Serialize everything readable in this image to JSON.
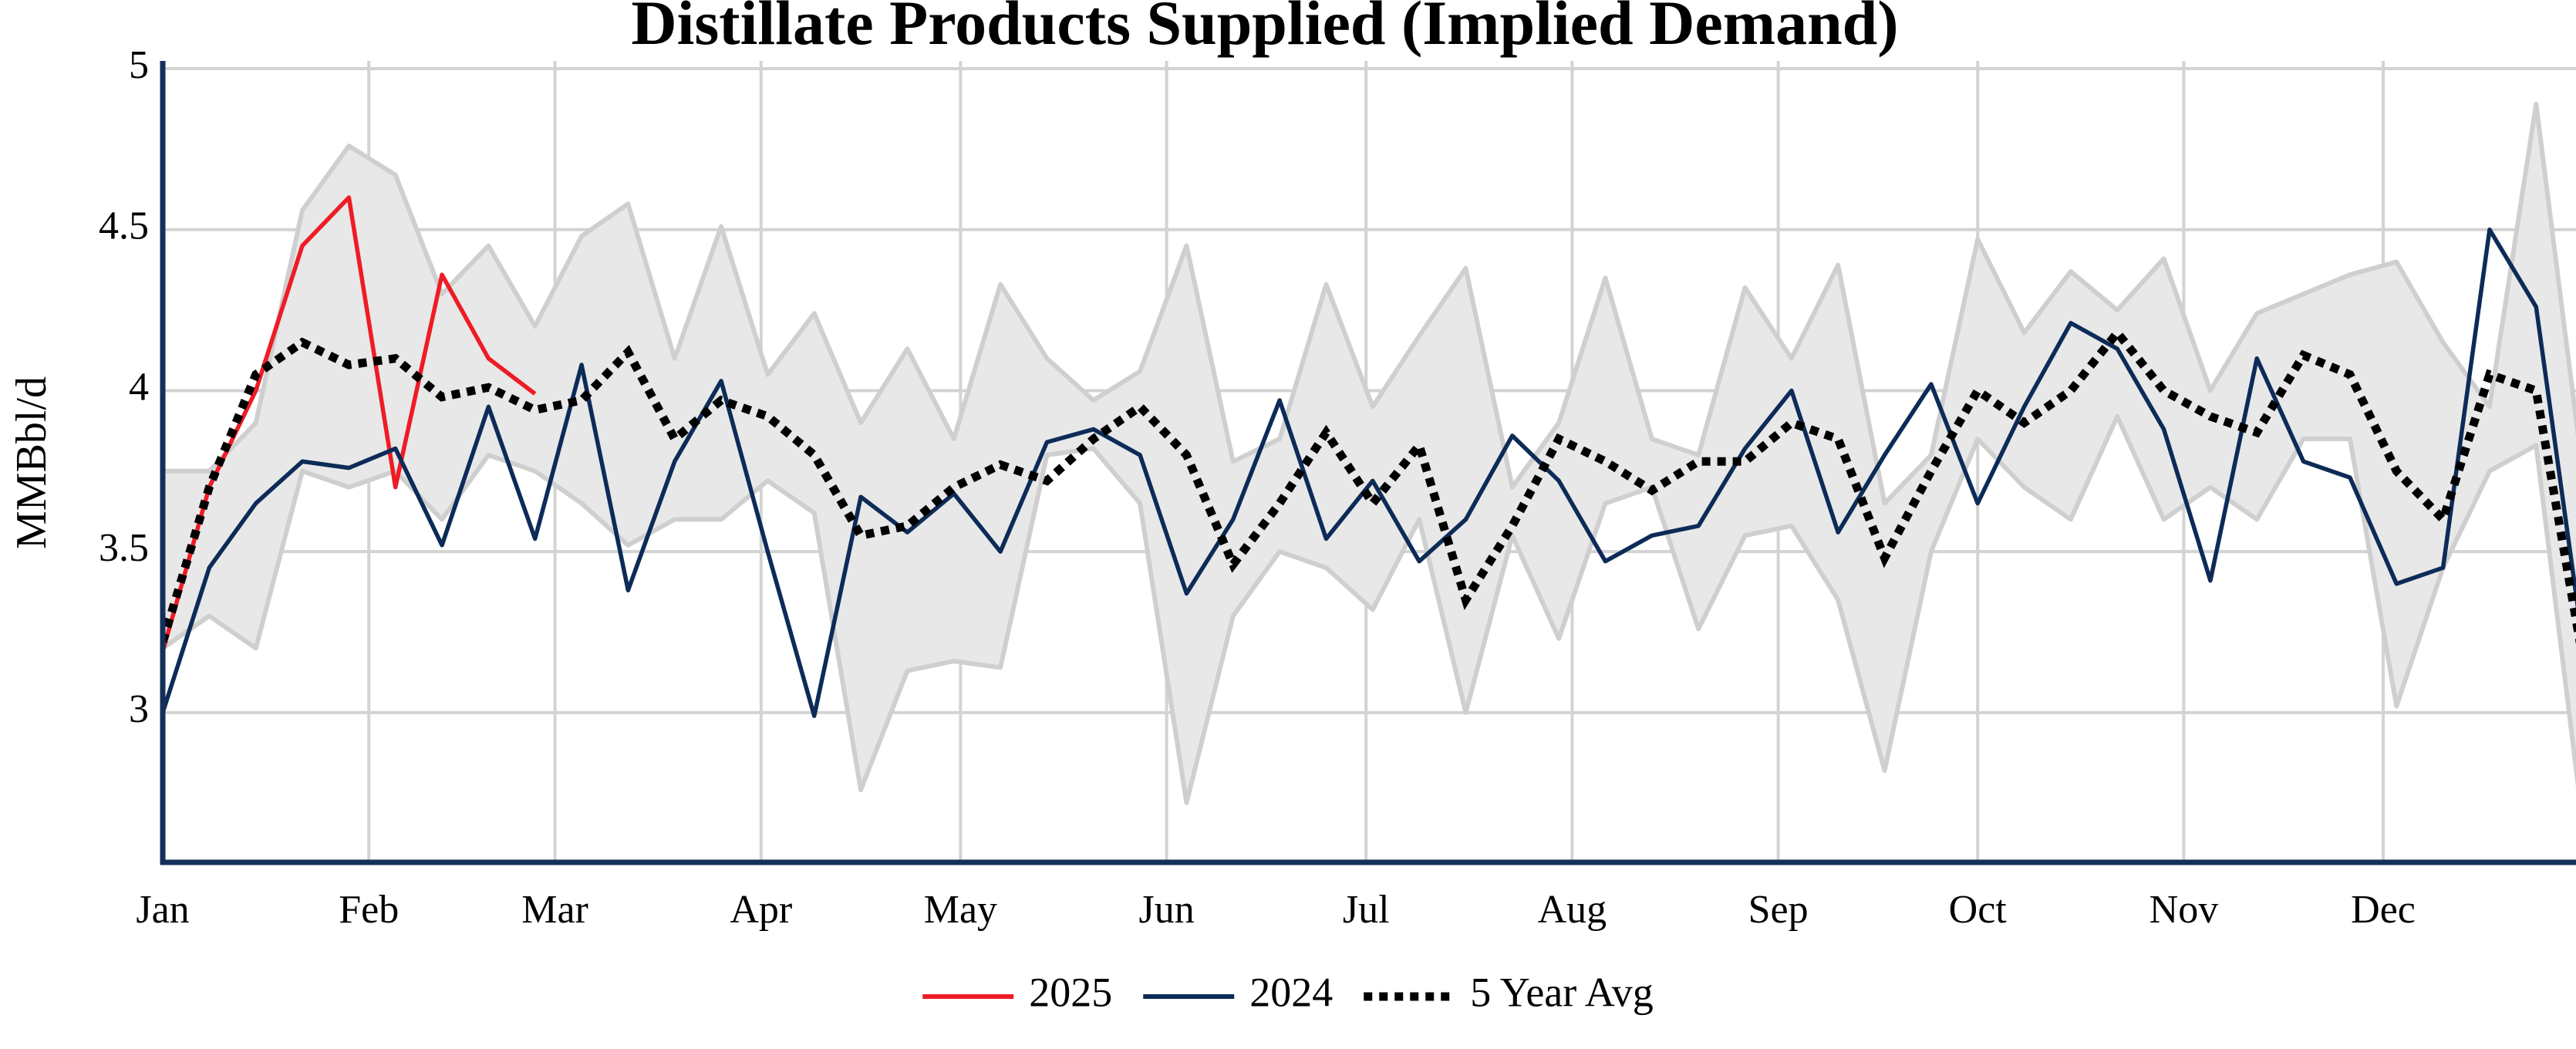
{
  "chart_data": {
    "type": "line",
    "title": "Distillate Products Supplied (Implied Demand)",
    "y_label": "MMBbl/d",
    "x": [
      0,
      7,
      14,
      21,
      28,
      35,
      42,
      49,
      56,
      63,
      70,
      77,
      84,
      91,
      98,
      105,
      112,
      119,
      126,
      133,
      140,
      147,
      154,
      161,
      168,
      175,
      182,
      189,
      196,
      203,
      210,
      217,
      224,
      231,
      238,
      245,
      252,
      259,
      266,
      273,
      280,
      287,
      294,
      301,
      308,
      315,
      322,
      329,
      336,
      343,
      350,
      357,
      364
    ],
    "xlim": [
      0,
      363
    ],
    "xticks": [
      {
        "value": 0,
        "label": "Jan"
      },
      {
        "value": 31,
        "label": "Feb"
      },
      {
        "value": 59,
        "label": "Mar"
      },
      {
        "value": 90,
        "label": "Apr"
      },
      {
        "value": 120,
        "label": "May"
      },
      {
        "value": 151,
        "label": "Jun"
      },
      {
        "value": 181,
        "label": "Jul"
      },
      {
        "value": 212,
        "label": "Aug"
      },
      {
        "value": 243,
        "label": "Sep"
      },
      {
        "value": 273,
        "label": "Oct"
      },
      {
        "value": 304,
        "label": "Nov"
      },
      {
        "value": 334,
        "label": "Dec"
      }
    ],
    "ylim": [
      2.535,
      5
    ],
    "yticks": [
      3,
      3.5,
      4,
      4.5,
      5
    ],
    "grid": true,
    "legend": "bottom",
    "band": {
      "color": "#e8e8e8",
      "edge_color": "#cfcfcf",
      "upper": [
        3.75,
        3.75,
        3.9,
        4.56,
        4.76,
        4.67,
        4.3,
        4.45,
        4.2,
        4.48,
        4.58,
        4.1,
        4.51,
        4.05,
        4.24,
        3.9,
        4.13,
        3.85,
        4.33,
        4.1,
        3.97,
        4.06,
        4.45,
        3.78,
        3.85,
        4.33,
        3.95,
        4.17,
        4.38,
        3.7,
        3.9,
        4.35,
        3.85,
        3.8,
        4.32,
        4.1,
        4.39,
        3.65,
        3.8,
        4.47,
        4.18,
        4.37,
        4.25,
        4.41,
        4.0,
        4.24,
        4.3,
        4.36,
        4.4,
        4.15,
        3.95,
        4.89,
        3.75
      ],
      "lower": [
        3.2,
        3.3,
        3.2,
        3.75,
        3.7,
        3.75,
        3.6,
        3.8,
        3.75,
        3.65,
        3.52,
        3.6,
        3.6,
        3.72,
        3.62,
        2.76,
        3.13,
        3.16,
        3.14,
        3.8,
        3.82,
        3.65,
        2.72,
        3.3,
        3.5,
        3.45,
        3.32,
        3.6,
        3.0,
        3.55,
        3.23,
        3.65,
        3.7,
        3.26,
        3.55,
        3.58,
        3.35,
        2.82,
        3.5,
        3.85,
        3.7,
        3.6,
        3.92,
        3.6,
        3.7,
        3.6,
        3.85,
        3.85,
        3.02,
        3.45,
        3.75,
        3.83,
        2.66
      ]
    },
    "series": [
      {
        "name": "2025",
        "color": "#ee1c25",
        "style": "solid",
        "values": [
          3.19,
          3.7,
          4.0,
          4.45,
          4.6,
          3.7,
          4.36,
          4.1,
          3.99,
          null,
          null,
          null,
          null,
          null,
          null,
          null,
          null,
          null,
          null,
          null,
          null,
          null,
          null,
          null,
          null,
          null,
          null,
          null,
          null,
          null,
          null,
          null,
          null,
          null,
          null,
          null,
          null,
          null,
          null,
          null,
          null,
          null,
          null,
          null,
          null,
          null,
          null,
          null,
          null,
          null,
          null,
          null,
          null
        ]
      },
      {
        "name": "2024",
        "color": "#0d2b57",
        "style": "solid",
        "values": [
          3.0,
          3.45,
          3.65,
          3.78,
          3.76,
          3.82,
          3.52,
          3.95,
          3.54,
          4.08,
          3.38,
          3.78,
          4.03,
          3.5,
          2.99,
          3.67,
          3.56,
          3.68,
          3.5,
          3.84,
          3.88,
          3.8,
          3.37,
          3.6,
          3.97,
          3.54,
          3.72,
          3.47,
          3.6,
          3.86,
          3.72,
          3.47,
          3.55,
          3.58,
          3.82,
          4.0,
          3.56,
          3.8,
          4.02,
          3.65,
          3.95,
          4.21,
          4.13,
          3.88,
          3.41,
          4.1,
          3.78,
          3.73,
          3.4,
          3.45,
          4.5,
          4.26,
          3.22
        ]
      },
      {
        "name": "5 Year Avg",
        "color": "#000000",
        "style": "dotted",
        "values": [
          3.22,
          3.7,
          4.05,
          4.15,
          4.08,
          4.1,
          3.98,
          4.01,
          3.94,
          3.97,
          4.12,
          3.85,
          3.97,
          3.92,
          3.8,
          3.55,
          3.58,
          3.7,
          3.77,
          3.72,
          3.85,
          3.95,
          3.8,
          3.46,
          3.65,
          3.87,
          3.65,
          3.83,
          3.35,
          3.58,
          3.85,
          3.78,
          3.69,
          3.78,
          3.78,
          3.9,
          3.85,
          3.48,
          3.75,
          4.0,
          3.9,
          4.0,
          4.18,
          4.0,
          3.92,
          3.87,
          4.11,
          4.05,
          3.75,
          3.6,
          4.05,
          4.0,
          3.17
        ]
      }
    ]
  }
}
